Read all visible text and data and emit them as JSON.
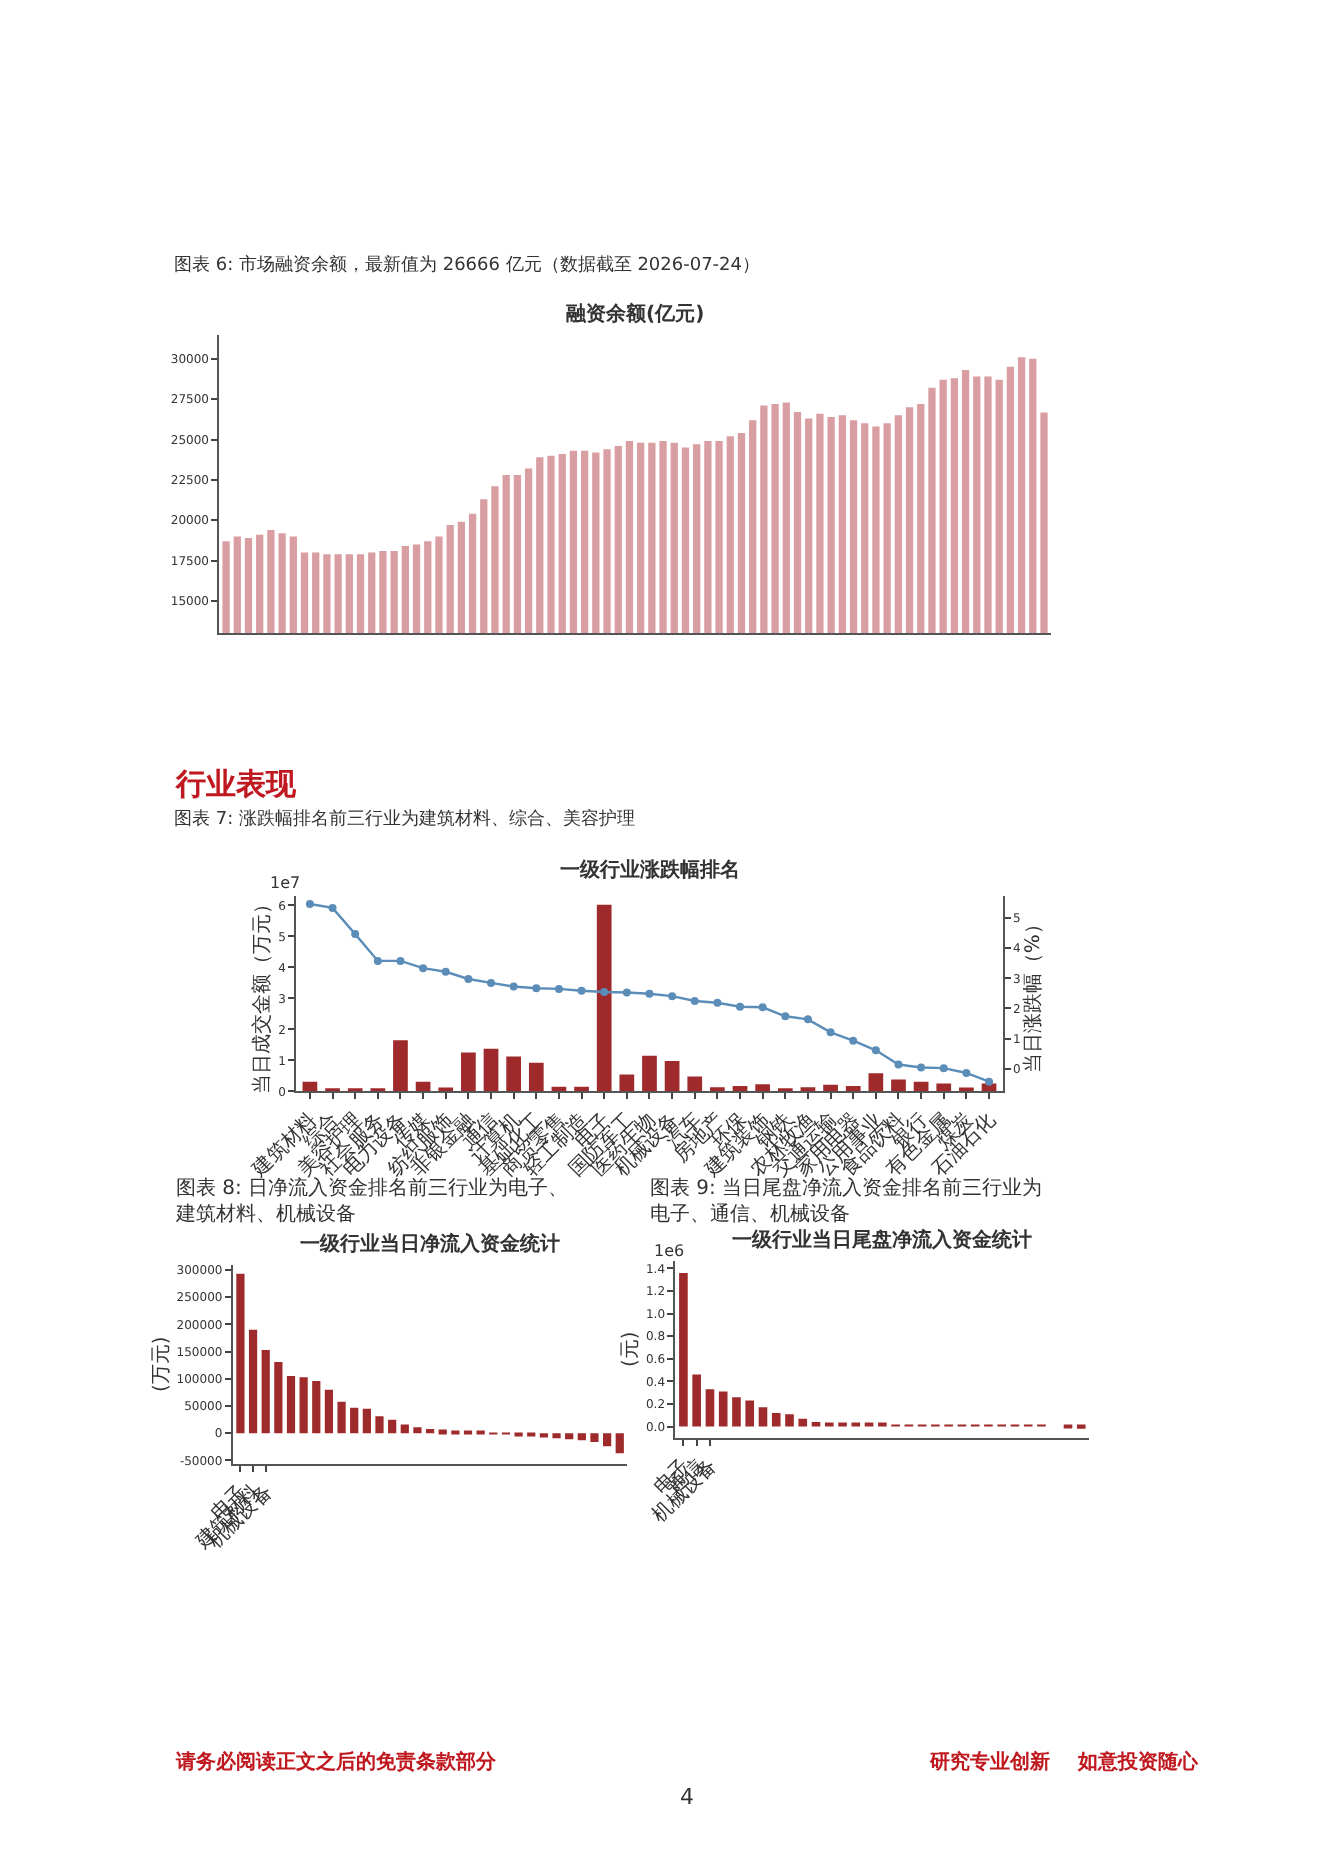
{
  "chart_data": [
    {
      "type": "bar",
      "title": "融资余额(亿元)",
      "categories": [
        null,
        null,
        null,
        null,
        null,
        null,
        null,
        null,
        null,
        null,
        null,
        null,
        null,
        null,
        null,
        null,
        null,
        null,
        null,
        null,
        null,
        null,
        null,
        null,
        null,
        null,
        null,
        null,
        null,
        null,
        null,
        null,
        null,
        null,
        null,
        null,
        null,
        null,
        null,
        null,
        null,
        null,
        null,
        null,
        null,
        null,
        null,
        null,
        null,
        null,
        null,
        null,
        null,
        null,
        null,
        null,
        null,
        null,
        null,
        null,
        null,
        null,
        null,
        null,
        null,
        null,
        null,
        null,
        null,
        null,
        null,
        null,
        null,
        null
      ],
      "values": [
        18700,
        19000,
        18900,
        19100,
        19400,
        19200,
        19000,
        18000,
        18000,
        17900,
        17900,
        17900,
        17900,
        18000,
        18100,
        18100,
        18400,
        18500,
        18700,
        19000,
        19700,
        19900,
        20400,
        21300,
        22100,
        22800,
        22800,
        23200,
        23900,
        24000,
        24100,
        24300,
        24300,
        24200,
        24400,
        24600,
        24900,
        24800,
        24800,
        24900,
        24800,
        24500,
        24700,
        24900,
        24900,
        25200,
        25400,
        26200,
        27100,
        27200,
        27300,
        26700,
        26300,
        26600,
        26400,
        26500,
        26200,
        26000,
        25800,
        26000,
        26500,
        27000,
        27200,
        28200,
        28700,
        28800,
        29300,
        28900,
        28900,
        28700,
        29500,
        30100,
        30000,
        26666
      ],
      "color": "#d99ea1",
      "ylim": [
        13000,
        31500
      ],
      "yticks": [
        15000,
        17500,
        20000,
        22500,
        25000,
        27500,
        30000
      ],
      "annotations": [
        "图表 6: 市场融资余额，最新值为 26666 亿元（数据截至 2026-07-24）"
      ]
    },
    {
      "type": "bar",
      "title": "一级行业涨跌幅排名",
      "ylabel": "当日成交金额（万元）",
      "y2label": "当日涨跌幅（%）",
      "categories": [
        "建筑材料",
        "综合",
        "美容护理",
        "社会服务",
        "电力设备",
        "传媒",
        "纺织服饰",
        "非银金融",
        "通信",
        "计算机",
        "基础化工",
        "商贸零售",
        "轻工制造",
        "电子",
        "国防军工",
        "医药生物",
        "机械设备",
        "汽车",
        "房地产",
        "环保",
        "建筑装饰",
        "钢铁",
        "农林牧渔",
        "交通运输",
        "家用电器",
        "公用事业",
        "食品饮料",
        "银行",
        "有色金属",
        "煤炭",
        "石油石化"
      ],
      "series": [
        {
          "type": "bar",
          "color": "#9e2a2b",
          "values": [
            0.31,
            0.04,
            0.04,
            0.1,
            1.65,
            0.31,
            0.12,
            1.25,
            1.37,
            1.12,
            0.92,
            0.15,
            0.15,
            6.02,
            0.54,
            1.15,
            0.98,
            0.48,
            0.13,
            0.17,
            0.23,
            0.06,
            0.13,
            0.21,
            0.17,
            0.58,
            0.38,
            0.31,
            0.25,
            0.12,
            0.25
          ]
        },
        {
          "type": "line",
          "axis": "y2",
          "color": "#5b8db8",
          "marker": "circle",
          "line_style": "solid",
          "values": [
            5.47,
            5.34,
            4.47,
            3.58,
            3.58,
            3.34,
            3.22,
            2.98,
            2.85,
            2.73,
            2.67,
            2.65,
            2.59,
            2.55,
            2.53,
            2.49,
            2.41,
            2.25,
            2.19,
            2.06,
            2.04,
            1.74,
            1.64,
            1.21,
            0.93,
            0.61,
            0.14,
            0.04,
            0.02,
            -0.14,
            -0.43
          ]
        }
      ],
      "ylim": [
        0,
        6.3
      ],
      "yticks": [
        0,
        1,
        2,
        3,
        4,
        5,
        6
      ],
      "y2lim": [
        -0.75,
        5.73
      ],
      "y2ticks": [
        0,
        1,
        2,
        3,
        4,
        5
      ],
      "annotations": [
        "行业表现",
        "图表 7: 涨跌幅排名前三行业为建筑材料、综合、美容护理",
        "1e7"
      ]
    },
    {
      "type": "bar",
      "title": "一级行业当日净流入资金统计",
      "ylabel": "(万元)",
      "categories": [
        "电子",
        "建筑材料",
        "机械设备",
        null,
        null,
        null,
        null,
        null,
        null,
        null,
        null,
        null,
        null,
        null,
        null,
        null,
        null,
        null,
        null,
        null,
        null,
        null,
        null,
        null,
        null,
        null,
        null,
        null,
        null,
        null,
        null
      ],
      "values": [
        293000,
        190000,
        153000,
        131000,
        105000,
        103000,
        96000,
        80000,
        58000,
        47000,
        45000,
        31000,
        25000,
        16000,
        11000,
        8000,
        7000,
        5000,
        4000,
        3000,
        1000,
        -2000,
        -3000,
        -5000,
        -8000,
        -9000,
        -11000,
        -13000,
        -16000,
        -24000,
        -37000
      ],
      "color": "#9e2a2b",
      "ylim": [
        -56000,
        310000
      ],
      "yticks": [
        -50000,
        0,
        50000,
        100000,
        150000,
        200000,
        250000,
        300000
      ],
      "annotations": [
        "图表 8: 日净流入资金排名前三行业为电子、建筑材料、机械设备"
      ]
    },
    {
      "type": "bar",
      "title": "一级行业当日尾盘净流入资金统计",
      "ylabel": "(元)",
      "categories": [
        "电子",
        "通信",
        "机械设备",
        null,
        null,
        null,
        null,
        null,
        null,
        null,
        null,
        null,
        null,
        null,
        null,
        null,
        null,
        null,
        null,
        null,
        null,
        null,
        null,
        null,
        null,
        null,
        null,
        null,
        null,
        null,
        null
      ],
      "values": [
        1.36,
        0.46,
        0.33,
        0.31,
        0.26,
        0.23,
        0.17,
        0.12,
        0.11,
        0.07,
        0.04,
        0.02,
        0.02,
        0.02,
        0.02,
        0.02,
        0.01,
        0.01,
        0.01,
        0.01,
        0.01,
        0.01,
        0.01,
        0.01,
        0.01,
        0.01,
        0.01,
        0.01,
        0,
        -0.01,
        -0.02
      ],
      "color": "#9e2a2b",
      "ylim": [
        -0.1,
        1.47
      ],
      "yticks": [
        {
          "value": 0,
          "label": "0.0"
        },
        {
          "value": 0.2,
          "label": "0.2"
        },
        {
          "value": 0.4,
          "label": "0.4"
        },
        {
          "value": 0.6,
          "label": "0.6"
        },
        {
          "value": 0.8,
          "label": "0.8"
        },
        {
          "value": 1.0,
          "label": "1.0"
        },
        {
          "value": 1.2,
          "label": "1.2"
        },
        {
          "value": 1.4,
          "label": "1.4"
        }
      ],
      "annotations": [
        "图表 9: 当日尾盘净流入资金排名前三行业为电子、通信、机械设备",
        "1e6",
        "请务必阅读正文之后的免责条款部分",
        "研究专业创新    如意投资随心",
        "4"
      ]
    }
  ]
}
